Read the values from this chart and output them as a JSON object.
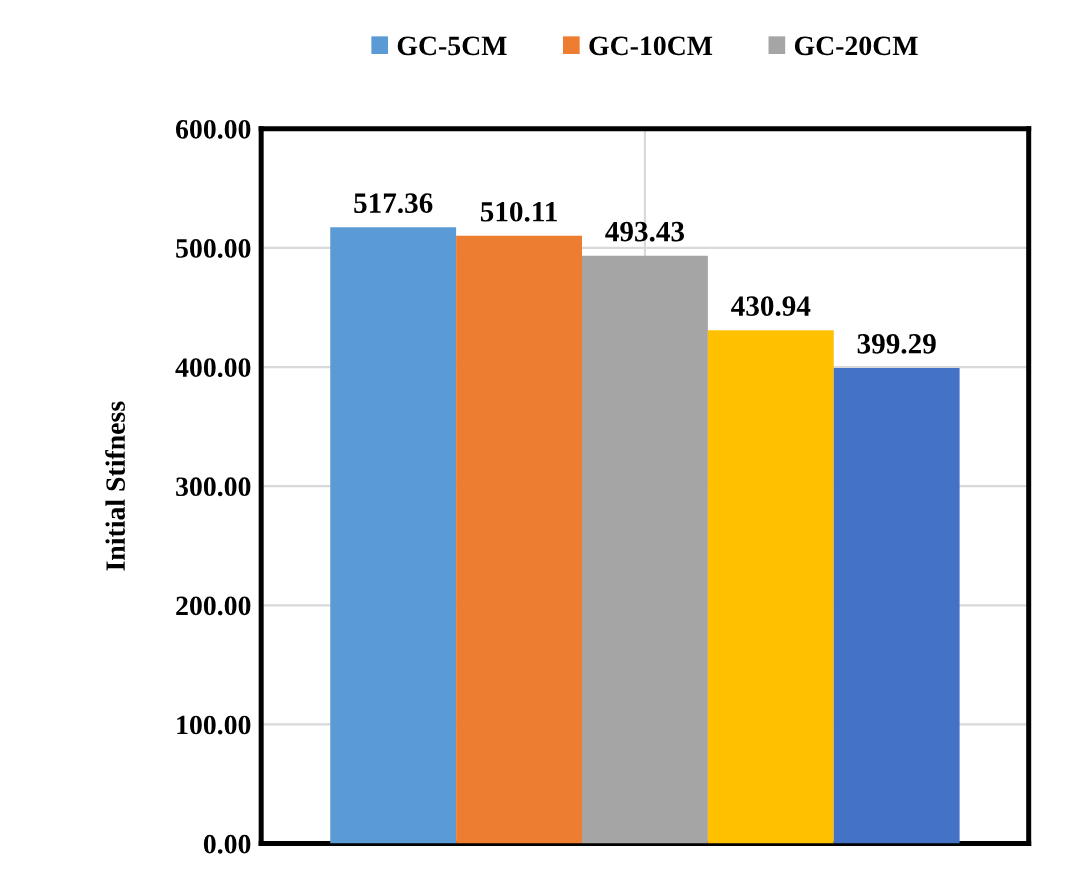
{
  "chart_data": {
    "type": "bar",
    "ylabel": "Initial Stifness",
    "categories": [
      null
    ],
    "series": [
      {
        "name": "GC-5CM",
        "color": "#5b9bd5",
        "values": [
          517.36
        ]
      },
      {
        "name": "GC-10CM",
        "color": "#ed7d31",
        "values": [
          510.11
        ]
      },
      {
        "name": "GC-20CM",
        "color": "#a5a5a5",
        "values": [
          493.43
        ]
      },
      {
        "color": "#ffc000",
        "values": [
          430.94
        ]
      },
      {
        "color": "#4472c4",
        "values": [
          399.29
        ]
      }
    ],
    "ylim": [
      0,
      600
    ],
    "yticks": [
      {
        "value": 0,
        "label": "0.00"
      },
      {
        "value": 100,
        "label": "100.00"
      },
      {
        "value": 200,
        "label": "200.00"
      },
      {
        "value": 300,
        "label": "300.00"
      },
      {
        "value": 400,
        "label": "400.00"
      },
      {
        "value": 500,
        "label": "500.00"
      },
      {
        "value": 600,
        "label": "600.00"
      }
    ],
    "data_labels": true,
    "grid": true,
    "legend": "top"
  }
}
